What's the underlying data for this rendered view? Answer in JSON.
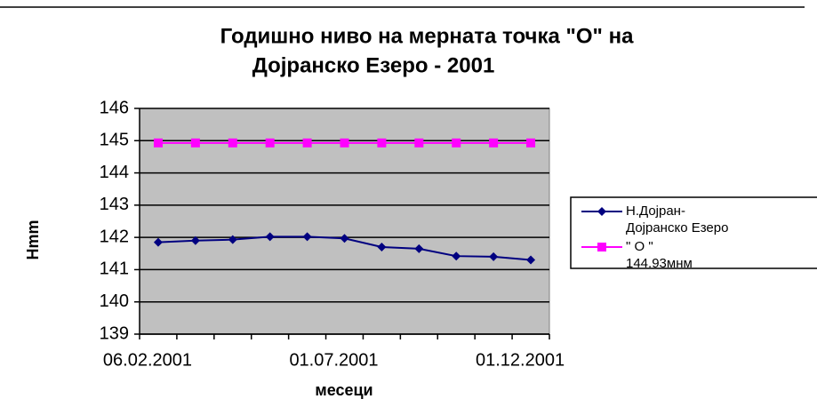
{
  "chart_data": {
    "type": "line",
    "title": "Годишно ниво на мерната точка \"О\" на",
    "subtitle": "Дојранско Езеро -  2001",
    "y_label": "Hmm",
    "x_label": "месеци",
    "categories": [
      "06.02.2001",
      null,
      null,
      null,
      null,
      "01.07.2001",
      null,
      null,
      null,
      null,
      "01.12.2001"
    ],
    "series": [
      {
        "name": "Н.Дојран-Дојранско Езеро",
        "color": "#000080",
        "marker": "diamond",
        "values": [
          141.85,
          141.9,
          141.93,
          142.02,
          142.02,
          141.97,
          141.7,
          141.65,
          141.42,
          141.4,
          141.3
        ]
      },
      {
        "name": "\" О \" 144.93мнм",
        "color": "#ff00ff",
        "marker": "square",
        "values": [
          144.93,
          144.93,
          144.93,
          144.93,
          144.93,
          144.93,
          144.93,
          144.93,
          144.93,
          144.93,
          144.93
        ]
      }
    ],
    "ylim": [
      139,
      146
    ],
    "yticks": [
      139,
      140,
      141,
      142,
      143,
      144,
      145,
      146
    ],
    "grid": true,
    "plot_color": "#c0c0c0",
    "legend": "right"
  }
}
